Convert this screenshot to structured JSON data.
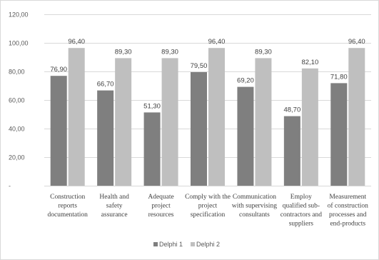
{
  "chart_data": {
    "type": "bar",
    "title": "",
    "xlabel": "",
    "ylabel": "",
    "ylim": [
      0,
      120
    ],
    "yticks": [
      0,
      20,
      40,
      60,
      80,
      100,
      120
    ],
    "ytick_labels": [
      "-",
      "20,00",
      "40,00",
      "60,00",
      "80,00",
      "100,00",
      "120,00"
    ],
    "grid": true,
    "legend_position": "bottom",
    "categories": [
      "Construction reports documentation",
      "Health and safety assurance",
      "Adequate project resources",
      "Comply with the project specification",
      "Communication with supervising consultants",
      "Employ qualified sub-contractors and suppliers",
      "Measurement of construction processes and end-products"
    ],
    "category_lines": [
      [
        "Construction",
        "reports",
        "documentation"
      ],
      [
        "Health and",
        "safety",
        "assurance"
      ],
      [
        "Adequate",
        "project",
        "resources"
      ],
      [
        "Comply with the",
        "project",
        "specification"
      ],
      [
        "Communication",
        "with supervising",
        "consultants"
      ],
      [
        "Employ",
        "qualified sub-",
        "contractors and",
        "suppliers"
      ],
      [
        "Measurement",
        "of construction",
        "processes and",
        "end-products"
      ]
    ],
    "series": [
      {
        "name": "Delphi 1",
        "color": "#7f7f7f",
        "values": [
          76.9,
          66.7,
          51.3,
          79.5,
          69.2,
          48.7,
          71.8
        ],
        "labels": [
          "76,90",
          "66,70",
          "51,30",
          "79,50",
          "69,20",
          "48,70",
          "71,80"
        ]
      },
      {
        "name": "Delphi 2",
        "color": "#bfbfbf",
        "values": [
          96.4,
          89.3,
          89.3,
          96.4,
          89.3,
          82.1,
          96.4
        ],
        "labels": [
          "96,40",
          "89,30",
          "89,30",
          "96,40",
          "89,30",
          "82,10",
          "96,40"
        ]
      }
    ]
  }
}
